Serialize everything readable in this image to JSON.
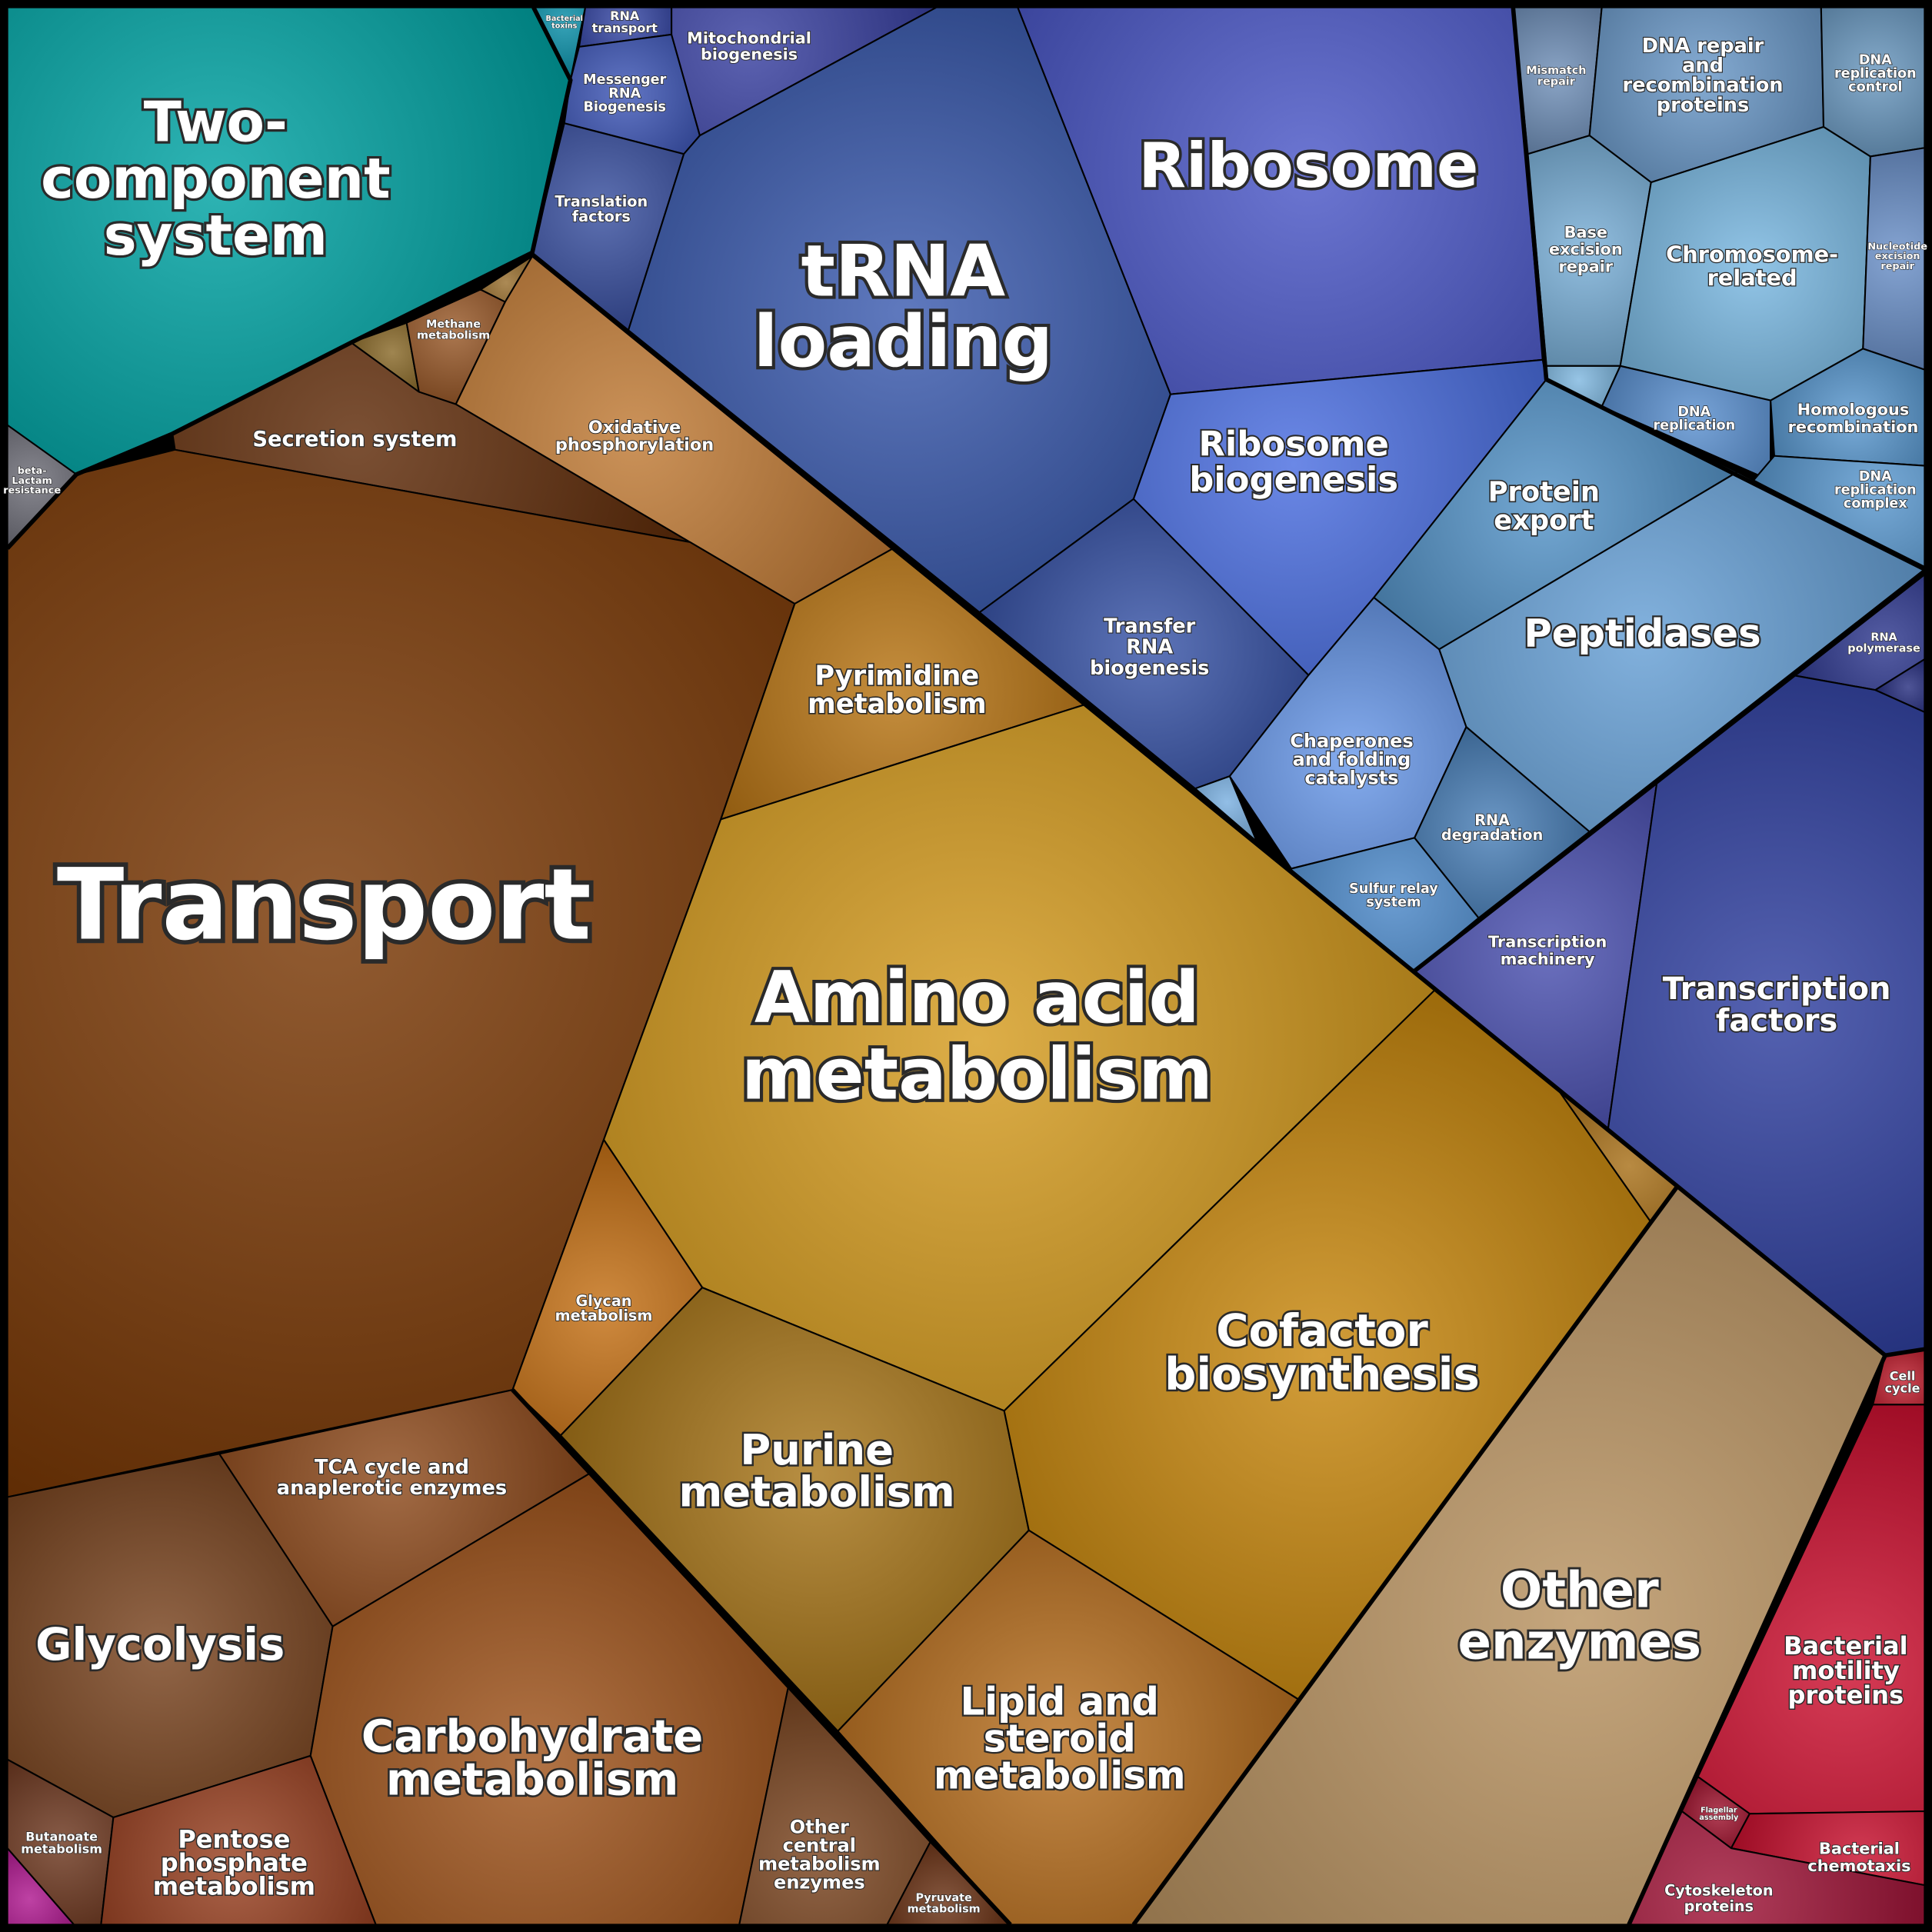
{
  "cells": [
    {
      "label": [
        "Two-",
        "component",
        "system"
      ]
    },
    {
      "label": [
        "beta-",
        "Lactam",
        "resistance"
      ]
    },
    {
      "label": [
        "Bacterial",
        "toxins"
      ]
    },
    {
      "label": [
        "Secretion system"
      ]
    },
    {
      "label": [
        "Methane",
        "metabolism"
      ]
    },
    {
      "label": [
        "Oxidative",
        "phosphorylation"
      ]
    },
    {
      "label": [
        "Transport"
      ]
    },
    {
      "label": [
        "TCA cycle and",
        "anaplerotic enzymes"
      ]
    },
    {
      "label": [
        "Glycolysis"
      ]
    },
    {
      "label": [
        "Carbohydrate",
        "metabolism"
      ]
    },
    {
      "label": [
        "Butanoate",
        "metabolism"
      ]
    },
    {
      "label": [
        "Pentose",
        "phosphate",
        "metabolism"
      ]
    },
    {
      "label": [
        "Other",
        "central",
        "metabolism",
        "enzymes"
      ]
    },
    {
      "label": [
        "Pyruvate",
        "metabolism"
      ]
    },
    {
      "label": [
        "Pyrimidine",
        "metabolism"
      ]
    },
    {
      "label": [
        "Amino acid",
        "metabolism"
      ]
    },
    {
      "label": [
        "Glycan",
        "metabolism"
      ]
    },
    {
      "label": [
        "Purine",
        "metabolism"
      ]
    },
    {
      "label": [
        "Cofactor",
        "biosynthesis"
      ]
    },
    {
      "label": [
        "Lipid and",
        "steroid",
        "metabolism"
      ]
    },
    {
      "label": [
        "Other",
        "enzymes"
      ]
    },
    {
      "label": [
        "Cell",
        "cycle"
      ]
    },
    {
      "label": [
        "Bacterial",
        "motility",
        "proteins"
      ]
    },
    {
      "label": [
        "Flagellar",
        "assembly"
      ]
    },
    {
      "label": [
        "Bacterial",
        "chemotaxis"
      ]
    },
    {
      "label": [
        "Cytoskeleton",
        "proteins"
      ]
    },
    {
      "label": [
        "RNA",
        "transport"
      ]
    },
    {
      "label": [
        "Messenger",
        "RNA",
        "Biogenesis"
      ]
    },
    {
      "label": [
        "Mitochondrial",
        "biogenesis"
      ]
    },
    {
      "label": [
        "Translation",
        "factors"
      ]
    },
    {
      "label": [
        "tRNA",
        "loading"
      ]
    },
    {
      "label": [
        "Ribosome"
      ]
    },
    {
      "label": [
        "Ribosome",
        "biogenesis"
      ]
    },
    {
      "label": [
        "Transfer",
        "RNA",
        "biogenesis"
      ]
    },
    {
      "label": [
        "Mismatch",
        "repair"
      ]
    },
    {
      "label": [
        "DNA repair",
        "and",
        "recombination",
        "proteins"
      ]
    },
    {
      "label": [
        "DNA",
        "replication",
        "control"
      ]
    },
    {
      "label": [
        "Base",
        "excision",
        "repair"
      ]
    },
    {
      "label": [
        "Chromosome-",
        "related"
      ]
    },
    {
      "label": [
        "Nucleotide",
        "excision",
        "repair"
      ]
    },
    {
      "label": [
        "DNA",
        "replication"
      ]
    },
    {
      "label": [
        "Homologous",
        "recombination"
      ]
    },
    {
      "label": [
        "DNA",
        "replication",
        "complex"
      ]
    },
    {
      "label": [
        "Protein",
        "export"
      ]
    },
    {
      "label": [
        "Peptidases"
      ]
    },
    {
      "label": [
        "Chaperones",
        "and folding",
        "catalysts"
      ]
    },
    {
      "label": [
        "RNA",
        "degradation"
      ]
    },
    {
      "label": [
        "Sulfur relay",
        "system"
      ]
    },
    {
      "label": [
        "RNA",
        "polymerase"
      ]
    },
    {
      "label": [
        "Transcription",
        "machinery"
      ]
    },
    {
      "label": [
        "Transcription",
        "factors"
      ]
    }
  ]
}
